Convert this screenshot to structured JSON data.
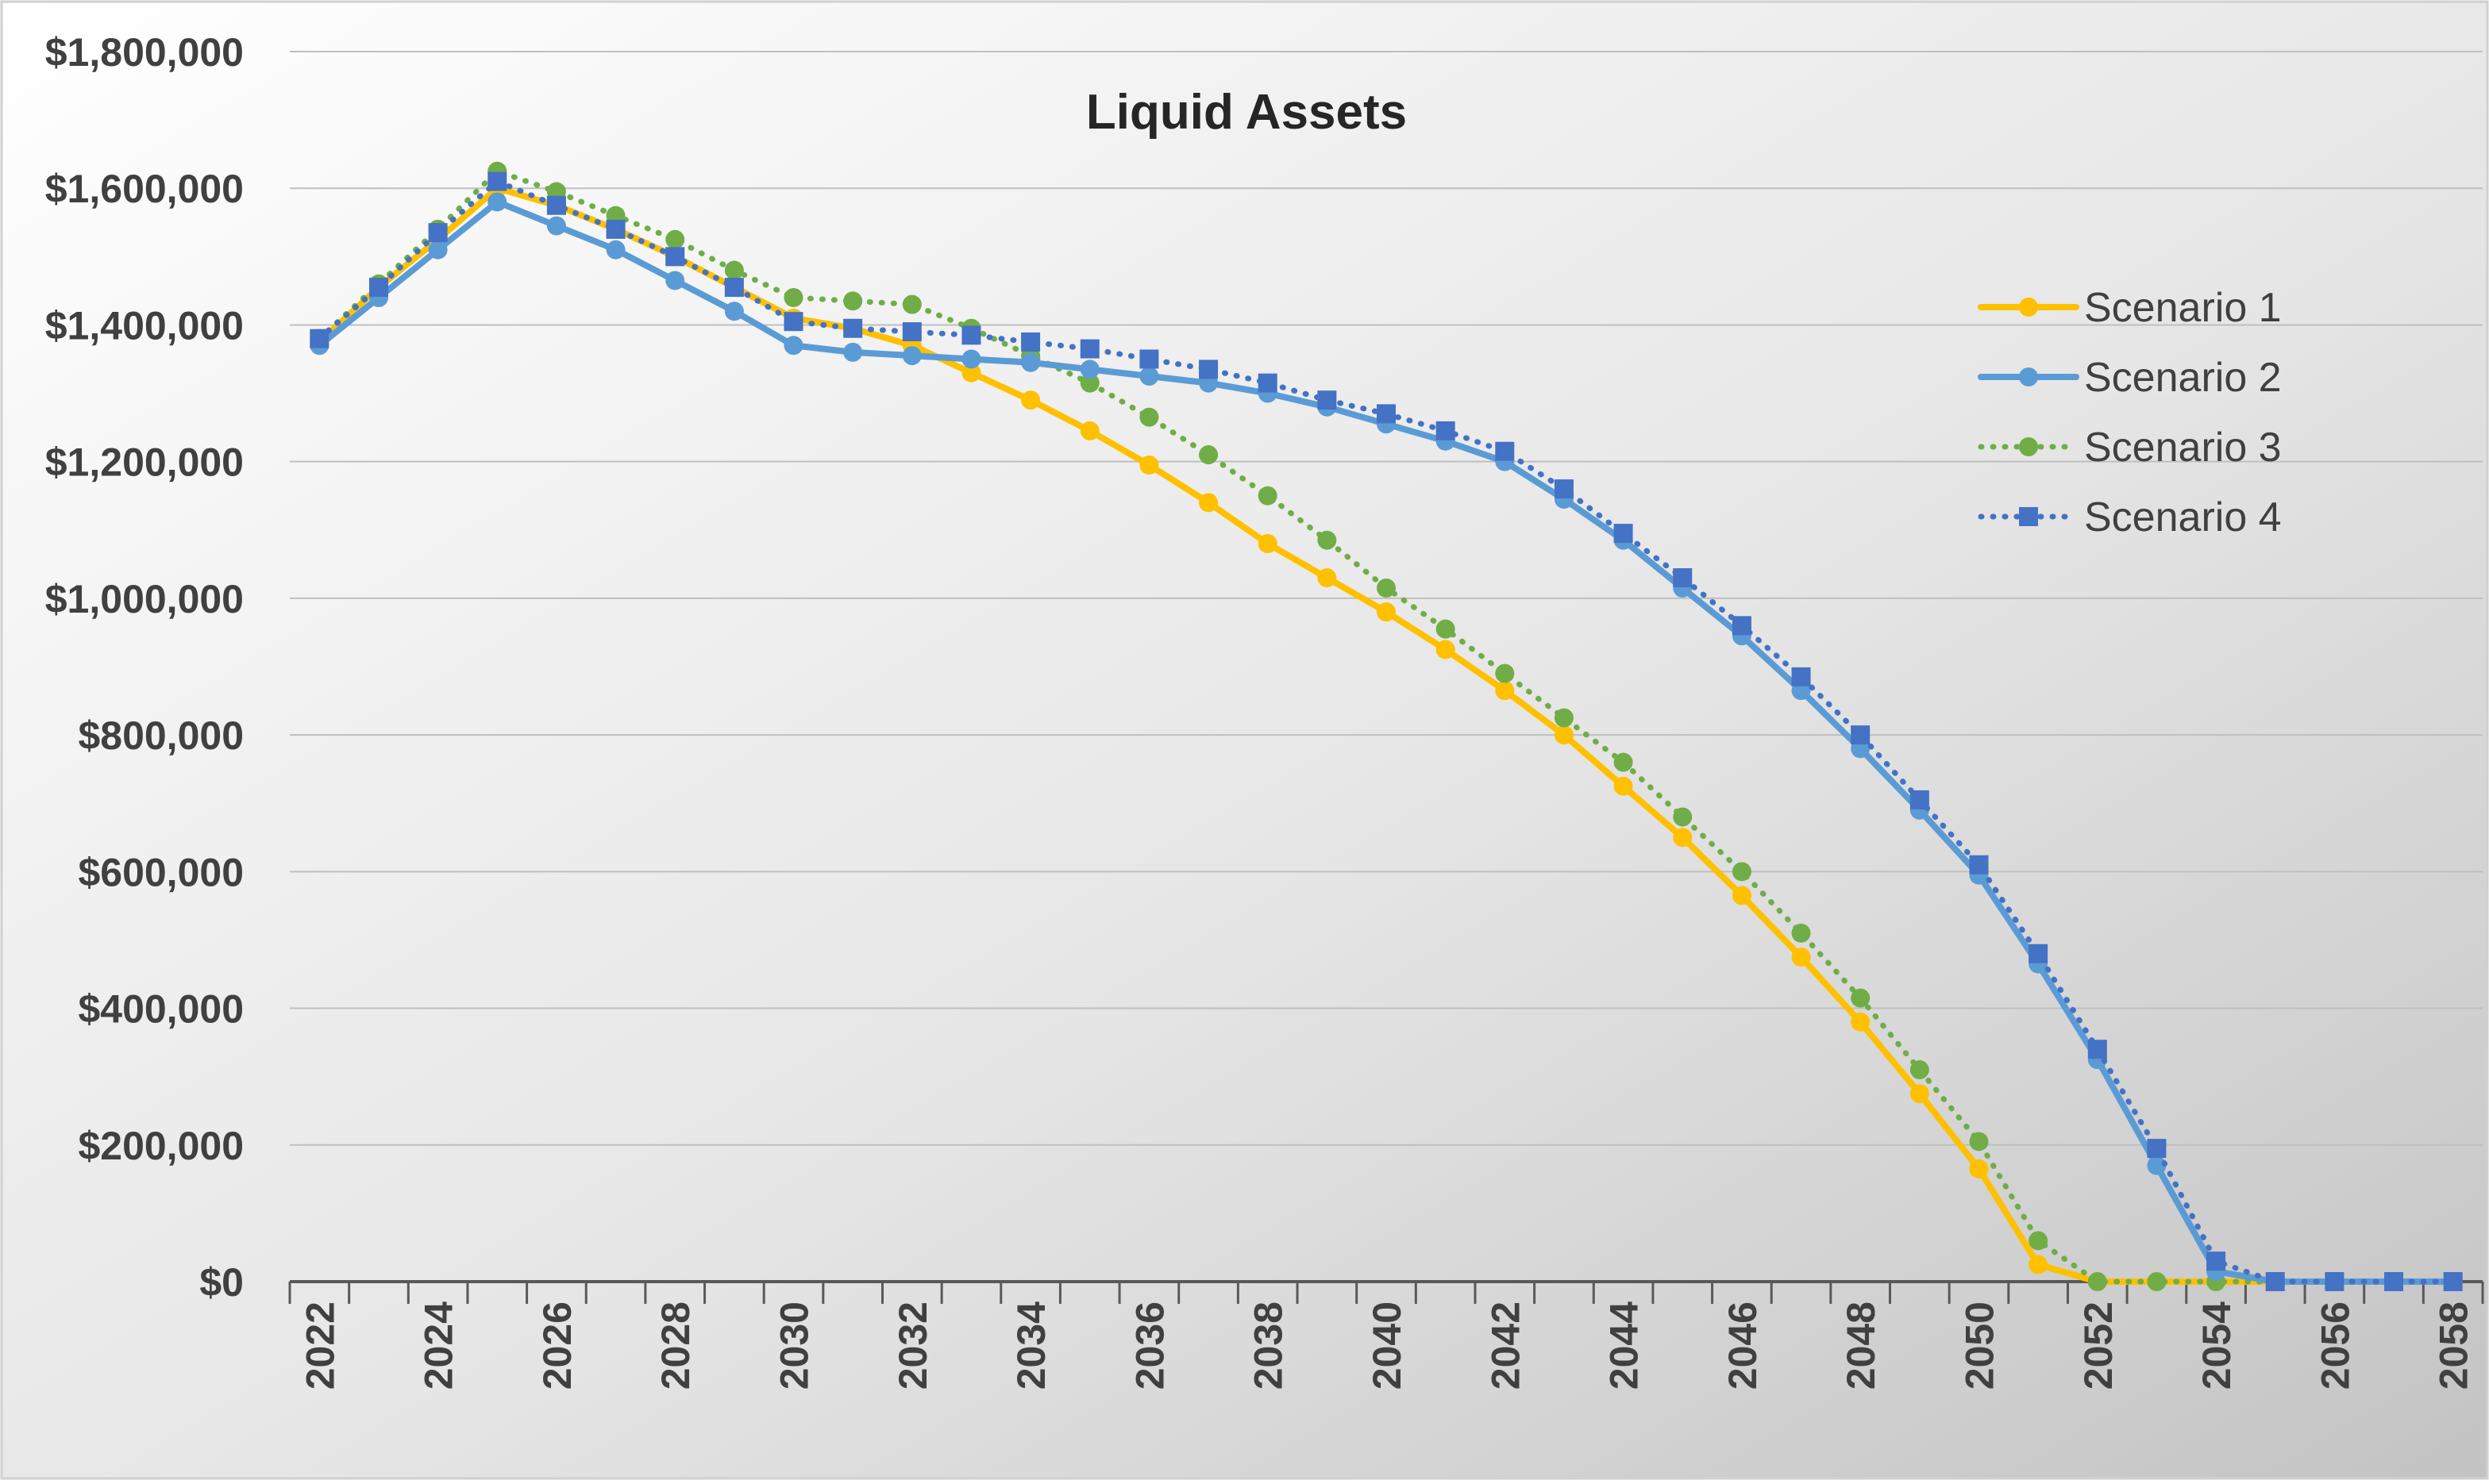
{
  "chart_data": {
    "type": "line",
    "title": "Liquid Assets",
    "xlabel": "",
    "ylabel": "",
    "ylim": [
      0,
      1800000
    ],
    "y_ticks": [
      0,
      200000,
      400000,
      600000,
      800000,
      1000000,
      1200000,
      1400000,
      1600000,
      1800000
    ],
    "y_tick_labels": [
      "$0",
      "$200,000",
      "$400,000",
      "$600,000",
      "$800,000",
      "$1,000,000",
      "$1,200,000",
      "$1,400,000",
      "$1,600,000",
      "$1,800,000"
    ],
    "x_tick_labels": [
      "2022",
      "2024",
      "2026",
      "2028",
      "2030",
      "2032",
      "2034",
      "2036",
      "2038",
      "2040",
      "2042",
      "2044",
      "2046",
      "2048",
      "2050",
      "2052",
      "2054",
      "2056",
      "2058"
    ],
    "x_tick_label_rotation": "vertical",
    "xlim": [
      2022,
      2058
    ],
    "grid": "horizontal",
    "legend": "right",
    "background": "gradient white to gray",
    "x": [
      2022,
      2023,
      2024,
      2025,
      2026,
      2027,
      2028,
      2029,
      2030,
      2031,
      2032,
      2033,
      2034,
      2035,
      2036,
      2037,
      2038,
      2039,
      2040,
      2041,
      2042,
      2043,
      2044,
      2045,
      2046,
      2047,
      2048,
      2049,
      2050,
      2051,
      2052,
      2053,
      2054,
      2055,
      2056,
      2057,
      2058
    ],
    "series": [
      {
        "name": "Scenario 1",
        "color": "#FFC000",
        "line_style": "solid",
        "marker": "circle",
        "values": [
          1375000,
          1455000,
          1525000,
          1600000,
          1575000,
          1540000,
          1500000,
          1455000,
          1410000,
          1395000,
          1370000,
          1330000,
          1290000,
          1245000,
          1195000,
          1140000,
          1080000,
          1030000,
          980000,
          925000,
          865000,
          800000,
          725000,
          650000,
          565000,
          475000,
          380000,
          275000,
          165000,
          25000,
          0,
          0,
          0,
          0,
          0,
          0,
          0
        ]
      },
      {
        "name": "Scenario 2",
        "color": "#5B9BD5",
        "line_style": "solid",
        "marker": "circle",
        "values": [
          1370000,
          1440000,
          1510000,
          1580000,
          1545000,
          1510000,
          1465000,
          1420000,
          1370000,
          1360000,
          1355000,
          1350000,
          1345000,
          1335000,
          1325000,
          1315000,
          1300000,
          1280000,
          1255000,
          1230000,
          1200000,
          1145000,
          1085000,
          1015000,
          945000,
          865000,
          780000,
          690000,
          595000,
          465000,
          325000,
          170000,
          15000,
          0,
          0,
          0,
          0
        ]
      },
      {
        "name": "Scenario 3",
        "color": "#70AD47",
        "line_style": "dotted",
        "marker": "circle",
        "values": [
          1380000,
          1460000,
          1540000,
          1625000,
          1595000,
          1560000,
          1525000,
          1480000,
          1440000,
          1435000,
          1430000,
          1395000,
          1355000,
          1315000,
          1265000,
          1210000,
          1150000,
          1085000,
          1015000,
          955000,
          890000,
          825000,
          760000,
          680000,
          600000,
          510000,
          415000,
          310000,
          205000,
          60000,
          0,
          0,
          0,
          0,
          0,
          0,
          0
        ]
      },
      {
        "name": "Scenario 4",
        "color": "#4472C4",
        "line_style": "dotted",
        "marker": "square",
        "values": [
          1380000,
          1455000,
          1535000,
          1610000,
          1575000,
          1540000,
          1500000,
          1455000,
          1405000,
          1395000,
          1390000,
          1385000,
          1375000,
          1365000,
          1350000,
          1335000,
          1315000,
          1290000,
          1270000,
          1245000,
          1215000,
          1160000,
          1095000,
          1030000,
          960000,
          885000,
          800000,
          705000,
          610000,
          480000,
          340000,
          195000,
          30000,
          0,
          0,
          0,
          0
        ]
      }
    ]
  }
}
